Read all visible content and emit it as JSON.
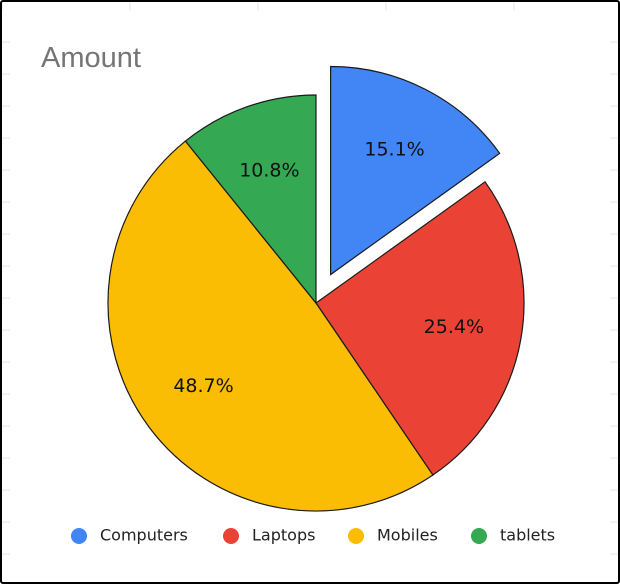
{
  "chart_data": {
    "type": "pie",
    "title": "Amount",
    "categories": [
      "Computers",
      "Laptops",
      "Mobiles",
      "tablets"
    ],
    "values": [
      15.1,
      25.4,
      48.7,
      10.8
    ],
    "labels": [
      "15.1%",
      "25.4%",
      "48.7%",
      "10.8%"
    ],
    "colors": [
      "#4285f4",
      "#ea4335",
      "#fbbc04",
      "#34a853"
    ],
    "exploded": [
      "Computers"
    ],
    "legend_position": "bottom"
  }
}
